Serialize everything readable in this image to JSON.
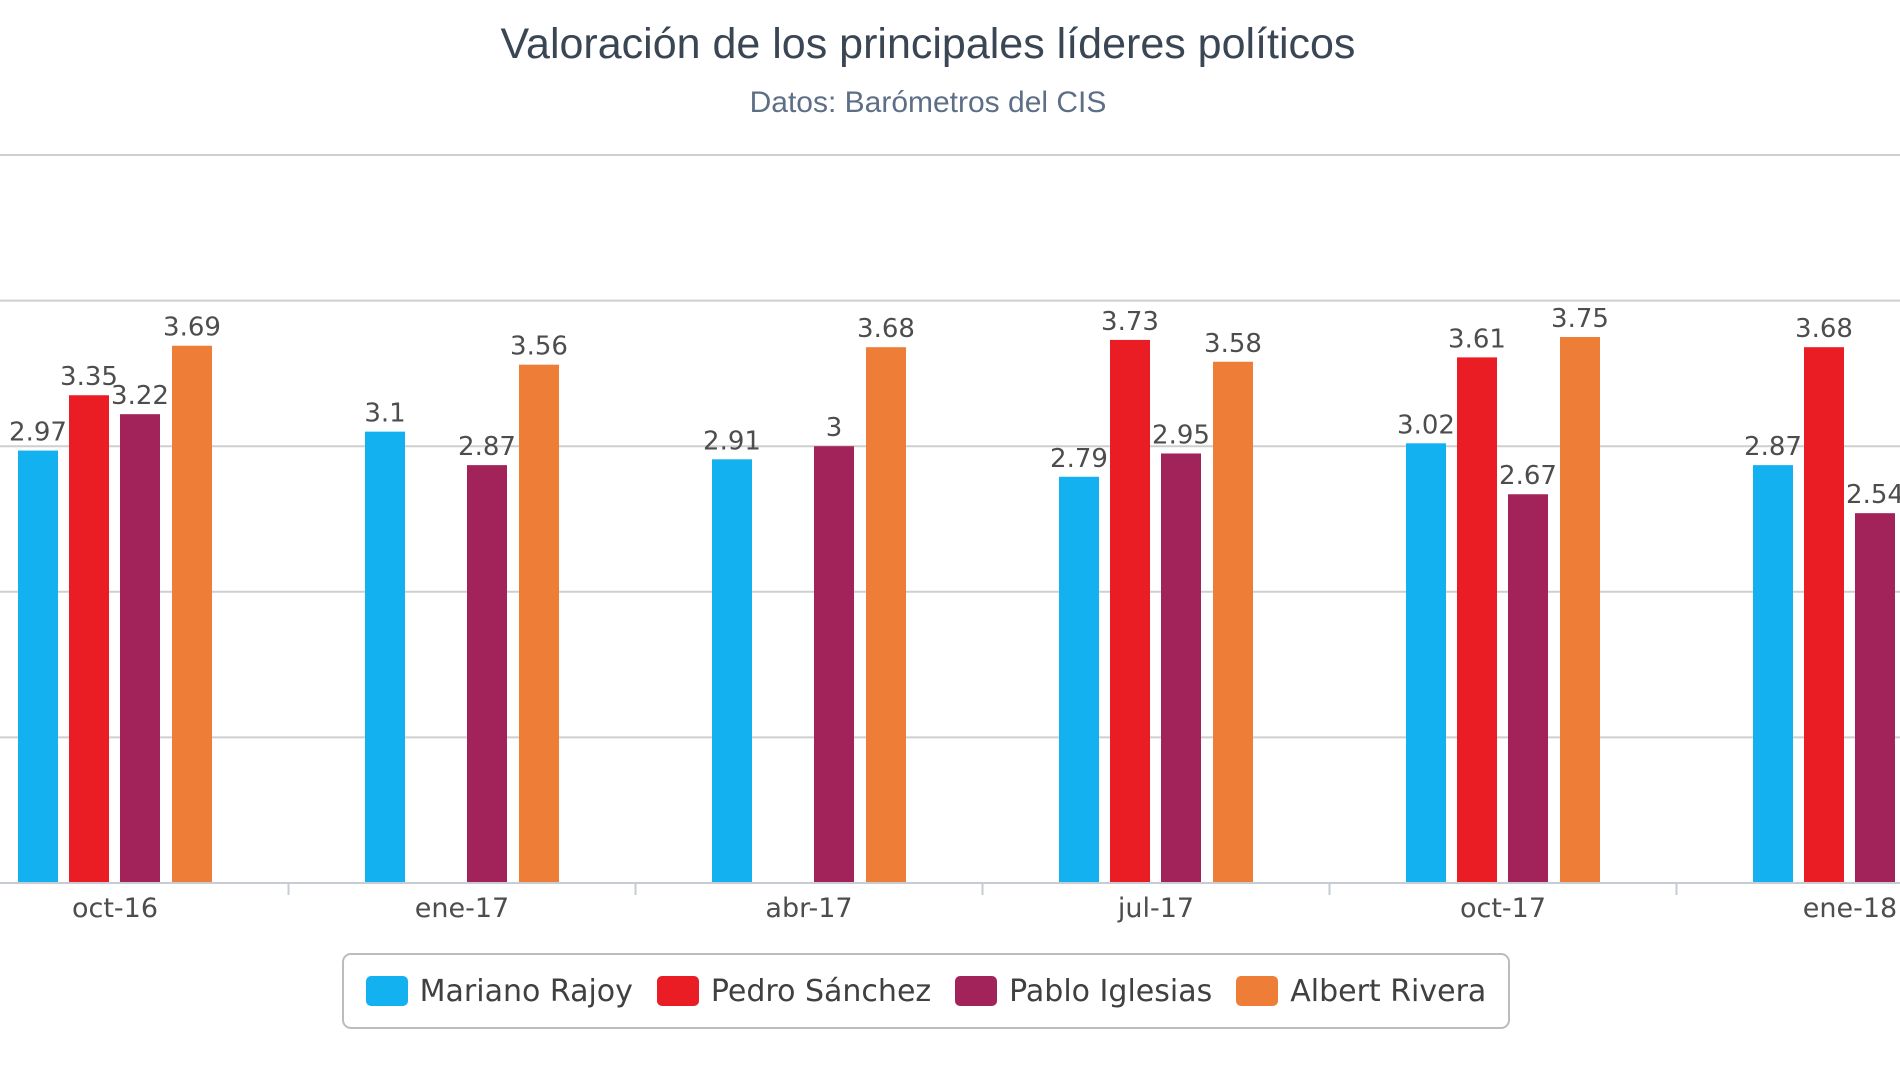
{
  "chart_data": {
    "type": "bar",
    "title": "Valoración de los principales líderes políticos",
    "subtitle": "Datos: Barómetros del CIS",
    "categories": [
      "oct-16",
      "ene-17",
      "abr-17",
      "jul-17",
      "oct-17",
      "ene-18"
    ],
    "series": [
      {
        "name": "Mariano Rajoy",
        "color": "#14b1f0",
        "values": [
          2.97,
          3.1,
          2.91,
          2.79,
          3.02,
          2.87
        ]
      },
      {
        "name": "Pedro Sánchez",
        "color": "#ea1c24",
        "values": [
          3.35,
          null,
          null,
          3.73,
          3.61,
          3.68
        ]
      },
      {
        "name": "Pablo Iglesias",
        "color": "#a2235a",
        "values": [
          3.22,
          2.87,
          3.0,
          2.95,
          2.67,
          2.54
        ]
      },
      {
        "name": "Albert Rivera",
        "color": "#ed7d37",
        "values": [
          3.69,
          3.56,
          3.68,
          3.58,
          3.75,
          null
        ]
      }
    ],
    "data_labels": [
      [
        "2.97",
        "3.1",
        "2.91",
        "2.79",
        "3.02",
        "2.87"
      ],
      [
        "3.35",
        "",
        "",
        "3.73",
        "3.61",
        "3.68"
      ],
      [
        "3.22",
        "2.87",
        "3",
        "2.95",
        "2.67",
        "2.54"
      ],
      [
        "3.69",
        "3.56",
        "3.68",
        "3.58",
        "3.75",
        ""
      ]
    ],
    "ylim": [
      0,
      5
    ],
    "grid": true,
    "legend_position": "bottom-center"
  }
}
